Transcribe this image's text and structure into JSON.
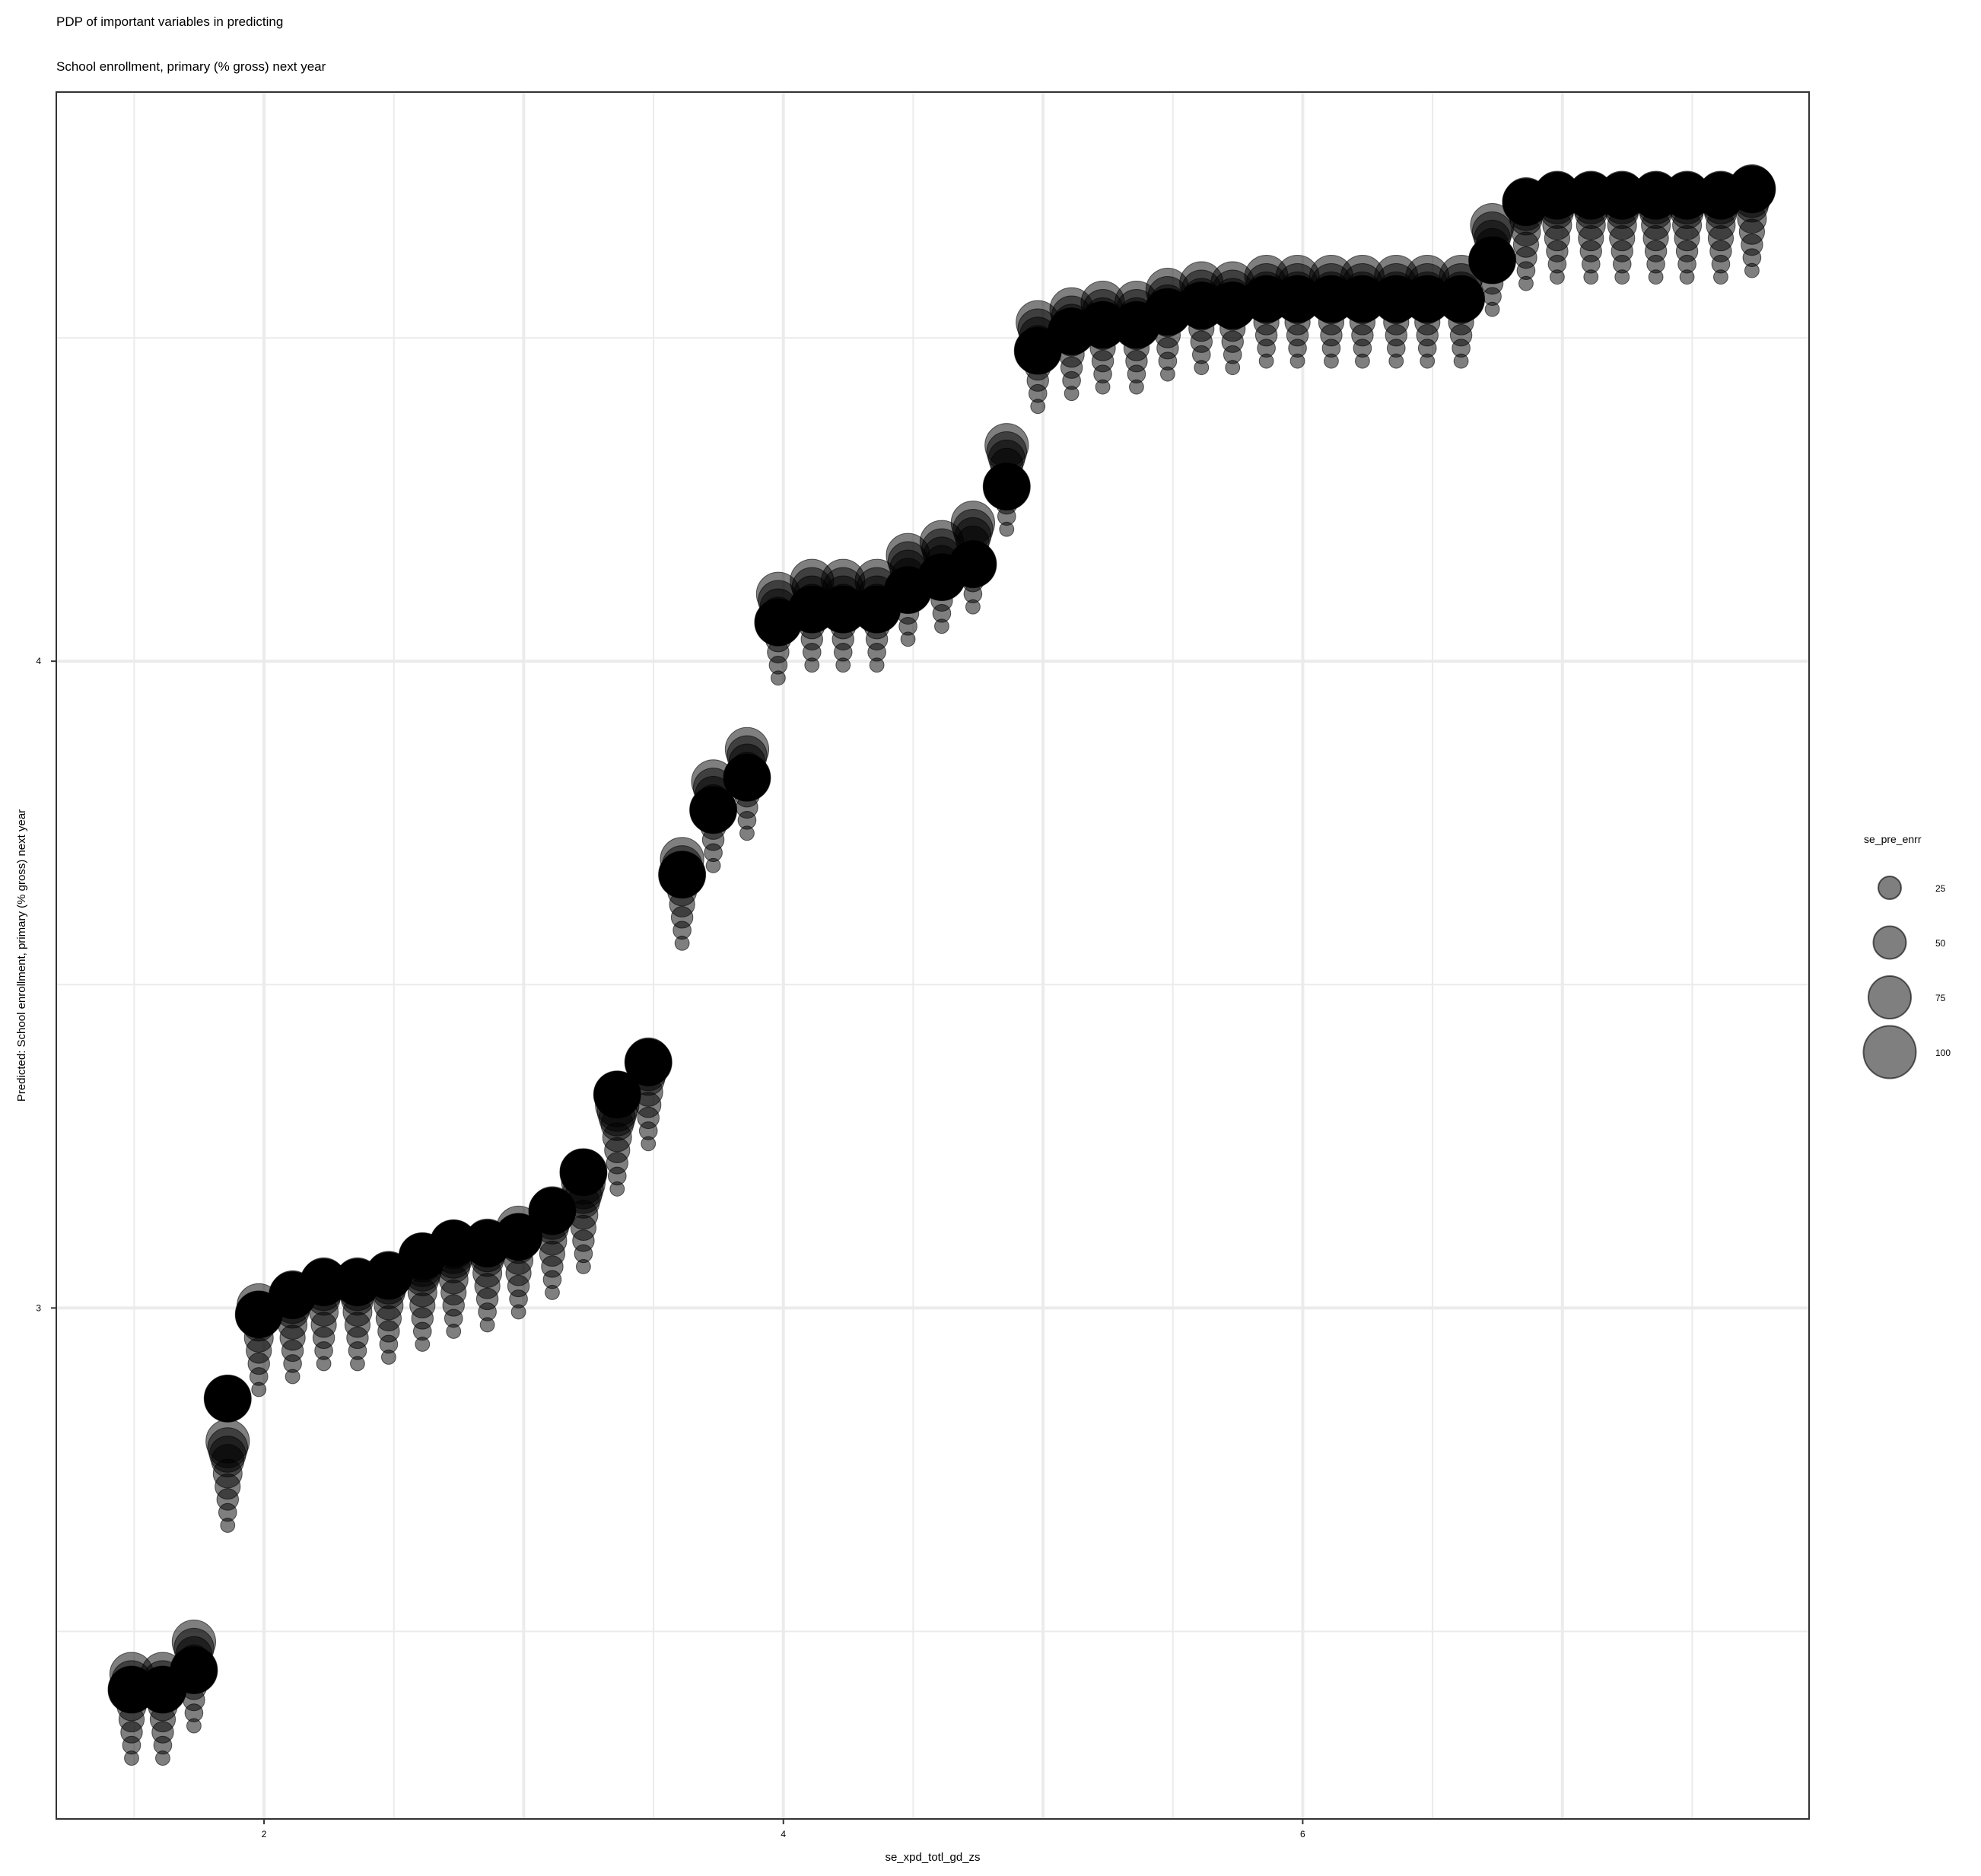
{
  "chart_data": {
    "type": "scatter",
    "title": "PDP of important variables in predicting",
    "subtitle": "School enrollment, primary (% gross) next year",
    "xlabel": "se_xpd_totl_gd_zs",
    "ylabel": "Predicted: School enrollment, primary (% gross) next year",
    "xlim": [
      1.2,
      7.95
    ],
    "ylim": [
      2.21,
      4.88
    ],
    "x_ticks": [
      2,
      4,
      6
    ],
    "x_tick_labels": [
      "2",
      "4",
      "6"
    ],
    "y_ticks": [
      3,
      4
    ],
    "y_tick_labels": [
      "3",
      "4"
    ],
    "grid": true,
    "legend": {
      "title": "se_pre_enrr",
      "position": "right",
      "entries": [
        {
          "label": "25",
          "value": 25
        },
        {
          "label": "50",
          "value": 50
        },
        {
          "label": "75",
          "value": 75
        },
        {
          "label": "100",
          "value": 100
        }
      ]
    },
    "point_color": "#000000",
    "point_alpha": 0.5,
    "size_variable": "se_pre_enrr",
    "size_levels": [
      10,
      20,
      30,
      40,
      50,
      60,
      70,
      80,
      90,
      100
    ],
    "x": [
      1.49,
      1.61,
      1.73,
      1.86,
      1.98,
      2.11,
      2.23,
      2.36,
      2.48,
      2.61,
      2.73,
      2.86,
      2.98,
      3.11,
      3.23,
      3.36,
      3.48,
      3.61,
      3.73,
      3.86,
      3.98,
      4.11,
      4.23,
      4.36,
      4.48,
      4.61,
      4.73,
      4.86,
      4.98,
      5.11,
      5.23,
      5.36,
      5.48,
      5.61,
      5.73,
      5.86,
      5.98,
      6.11,
      6.23,
      6.36,
      6.48,
      6.61,
      6.73,
      6.86,
      6.98,
      7.11,
      7.23,
      7.36,
      7.48,
      7.61,
      7.73
    ],
    "series": [
      {
        "se_pre_enrr": 10,
        "values": [
          2.304,
          2.304,
          2.354,
          2.664,
          2.874,
          2.894,
          2.914,
          2.914,
          2.924,
          2.944,
          2.964,
          2.974,
          2.994,
          3.024,
          3.064,
          3.184,
          3.254,
          3.564,
          3.684,
          3.734,
          3.974,
          3.994,
          3.994,
          3.994,
          4.034,
          4.054,
          4.084,
          4.204,
          4.394,
          4.414,
          4.424,
          4.424,
          4.444,
          4.454,
          4.454,
          4.464,
          4.464,
          4.464,
          4.464,
          4.464,
          4.464,
          4.464,
          4.544,
          4.584,
          4.594,
          4.594,
          4.594,
          4.594,
          4.594,
          4.594,
          4.604
        ]
      },
      {
        "se_pre_enrr": 20,
        "values": [
          2.324,
          2.324,
          2.374,
          2.684,
          2.894,
          2.914,
          2.934,
          2.934,
          2.944,
          2.964,
          2.984,
          2.994,
          3.014,
          3.044,
          3.084,
          3.204,
          3.274,
          3.584,
          3.704,
          3.754,
          3.994,
          4.014,
          4.014,
          4.014,
          4.054,
          4.074,
          4.104,
          4.224,
          4.414,
          4.434,
          4.444,
          4.444,
          4.464,
          4.474,
          4.474,
          4.484,
          4.484,
          4.484,
          4.484,
          4.484,
          4.484,
          4.484,
          4.564,
          4.604,
          4.614,
          4.614,
          4.614,
          4.614,
          4.614,
          4.614,
          4.624
        ]
      },
      {
        "se_pre_enrr": 30,
        "values": [
          2.344,
          2.344,
          2.394,
          2.704,
          2.914,
          2.934,
          2.954,
          2.954,
          2.964,
          2.984,
          3.004,
          3.014,
          3.034,
          3.064,
          3.104,
          3.224,
          3.294,
          3.604,
          3.724,
          3.774,
          4.014,
          4.034,
          4.034,
          4.034,
          4.074,
          4.094,
          4.124,
          4.244,
          4.434,
          4.454,
          4.464,
          4.464,
          4.484,
          4.494,
          4.494,
          4.504,
          4.504,
          4.504,
          4.504,
          4.504,
          4.504,
          4.504,
          4.584,
          4.624,
          4.634,
          4.634,
          4.634,
          4.634,
          4.634,
          4.634,
          4.644
        ]
      },
      {
        "se_pre_enrr": 40,
        "values": [
          2.364,
          2.364,
          2.414,
          2.724,
          2.934,
          2.954,
          2.974,
          2.974,
          2.984,
          3.004,
          3.024,
          3.034,
          3.054,
          3.084,
          3.124,
          3.244,
          3.314,
          3.624,
          3.744,
          3.794,
          4.034,
          4.054,
          4.054,
          4.054,
          4.094,
          4.114,
          4.144,
          4.264,
          4.454,
          4.474,
          4.484,
          4.484,
          4.504,
          4.514,
          4.514,
          4.524,
          4.524,
          4.524,
          4.524,
          4.524,
          4.524,
          4.524,
          4.604,
          4.644,
          4.654,
          4.654,
          4.654,
          4.654,
          4.654,
          4.654,
          4.664
        ]
      },
      {
        "se_pre_enrr": 50,
        "values": [
          2.384,
          2.384,
          2.434,
          2.744,
          2.954,
          2.974,
          2.994,
          2.994,
          3.004,
          3.024,
          3.044,
          3.054,
          3.074,
          3.104,
          3.144,
          3.264,
          3.334,
          3.644,
          3.764,
          3.814,
          4.054,
          4.074,
          4.074,
          4.074,
          4.114,
          4.134,
          4.164,
          4.284,
          4.474,
          4.494,
          4.504,
          4.504,
          4.524,
          4.534,
          4.534,
          4.544,
          4.544,
          4.544,
          4.544,
          4.544,
          4.544,
          4.544,
          4.624,
          4.664,
          4.674,
          4.674,
          4.674,
          4.674,
          4.674,
          4.674,
          4.684
        ]
      },
      {
        "se_pre_enrr": 60,
        "values": [
          2.404,
          2.404,
          2.454,
          2.764,
          2.974,
          2.994,
          3.014,
          3.014,
          3.024,
          3.044,
          3.064,
          3.074,
          3.094,
          3.124,
          3.164,
          3.284,
          3.354,
          3.664,
          3.784,
          3.834,
          4.074,
          4.094,
          4.094,
          4.094,
          4.134,
          4.154,
          4.184,
          4.304,
          4.494,
          4.514,
          4.524,
          4.524,
          4.544,
          4.554,
          4.554,
          4.564,
          4.564,
          4.564,
          4.564,
          4.564,
          4.564,
          4.564,
          4.644,
          4.684,
          4.694,
          4.694,
          4.694,
          4.694,
          4.694,
          4.694,
          4.704
        ]
      },
      {
        "se_pre_enrr": 70,
        "values": [
          2.414,
          2.414,
          2.464,
          2.774,
          2.984,
          3.004,
          3.024,
          3.024,
          3.034,
          3.054,
          3.074,
          3.084,
          3.104,
          3.134,
          3.174,
          3.294,
          3.364,
          3.674,
          3.794,
          3.844,
          4.084,
          4.104,
          4.104,
          4.104,
          4.144,
          4.164,
          4.194,
          4.314,
          4.504,
          4.524,
          4.534,
          4.534,
          4.554,
          4.564,
          4.564,
          4.574,
          4.574,
          4.574,
          4.574,
          4.574,
          4.574,
          4.574,
          4.654,
          4.694,
          4.704,
          4.704,
          4.704,
          4.704,
          4.704,
          4.704,
          4.714
        ]
      },
      {
        "se_pre_enrr": 80,
        "values": [
          2.424,
          2.424,
          2.474,
          2.784,
          2.994,
          3.014,
          3.034,
          3.034,
          3.044,
          3.064,
          3.084,
          3.094,
          3.114,
          3.144,
          3.184,
          3.304,
          3.374,
          3.684,
          3.804,
          3.854,
          4.094,
          4.114,
          4.114,
          4.114,
          4.154,
          4.174,
          4.204,
          4.324,
          4.514,
          4.534,
          4.544,
          4.544,
          4.564,
          4.574,
          4.574,
          4.584,
          4.584,
          4.584,
          4.584,
          4.584,
          4.584,
          4.584,
          4.664,
          4.704,
          4.714,
          4.714,
          4.714,
          4.714,
          4.714,
          4.714,
          4.724
        ]
      },
      {
        "se_pre_enrr": 90,
        "values": [
          2.434,
          2.434,
          2.484,
          2.794,
          3.004,
          3.024,
          3.044,
          3.044,
          3.054,
          3.074,
          3.094,
          3.104,
          3.124,
          3.154,
          3.194,
          3.314,
          3.384,
          3.694,
          3.814,
          3.864,
          4.104,
          4.124,
          4.124,
          4.124,
          4.164,
          4.184,
          4.214,
          4.334,
          4.524,
          4.544,
          4.554,
          4.554,
          4.574,
          4.584,
          4.584,
          4.594,
          4.594,
          4.594,
          4.594,
          4.594,
          4.594,
          4.594,
          4.674,
          4.714,
          4.724,
          4.724,
          4.724,
          4.724,
          4.724,
          4.724,
          4.734
        ]
      },
      {
        "se_pre_enrr": 100,
        "values": [
          2.41,
          2.41,
          2.44,
          2.86,
          2.99,
          3.02,
          3.04,
          3.04,
          3.05,
          3.08,
          3.1,
          3.1,
          3.11,
          3.15,
          3.21,
          3.33,
          3.38,
          3.67,
          3.77,
          3.82,
          4.06,
          4.08,
          4.08,
          4.08,
          4.11,
          4.13,
          4.15,
          4.27,
          4.48,
          4.51,
          4.52,
          4.52,
          4.54,
          4.55,
          4.55,
          4.56,
          4.56,
          4.56,
          4.56,
          4.56,
          4.56,
          4.56,
          4.62,
          4.71,
          4.72,
          4.72,
          4.72,
          4.72,
          4.72,
          4.72,
          4.73
        ]
      }
    ]
  }
}
